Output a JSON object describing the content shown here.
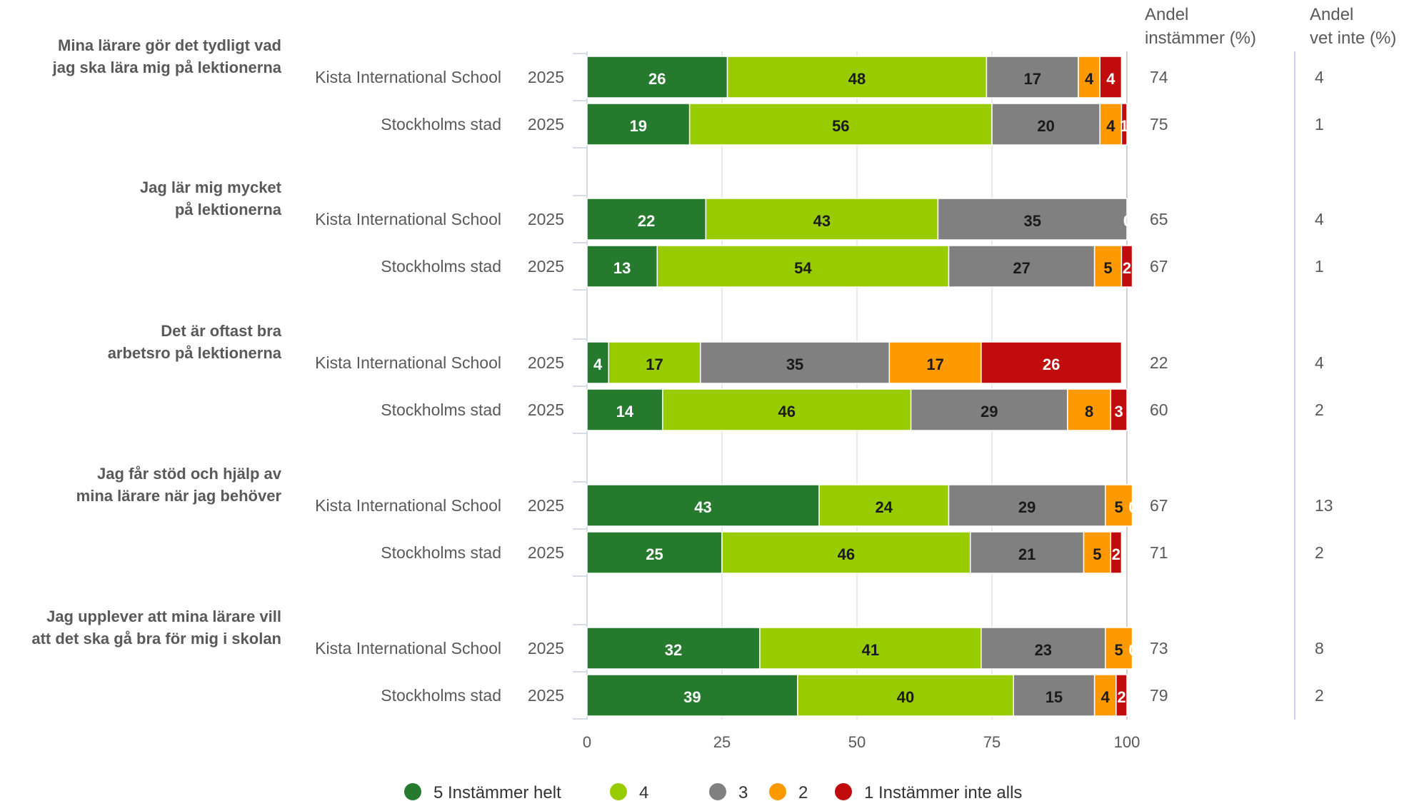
{
  "colors": {
    "5": "#267a2e",
    "4": "#99cc00",
    "3": "#808080",
    "2": "#ff9900",
    "1": "#c00c0c"
  },
  "chart_data": {
    "type": "bar",
    "orientation": "horizontal",
    "stacked": true,
    "xlim": [
      0,
      100
    ],
    "x_ticks": [
      "0",
      "25",
      "50",
      "75",
      "100"
    ],
    "grid": true,
    "legend_position": "bottom",
    "header_andel_instammer": [
      "Andel",
      "instämmer (%)"
    ],
    "header_andel_vet_inte": [
      "Andel",
      "vet inte (%)"
    ],
    "legend": [
      {
        "key": "5",
        "label": "5 Instämmer helt"
      },
      {
        "key": "4",
        "label": "4"
      },
      {
        "key": "3",
        "label": "3"
      },
      {
        "key": "2",
        "label": "2"
      },
      {
        "key": "1",
        "label": "1 Instämmer inte alls"
      }
    ],
    "questions": [
      {
        "label": [
          "Mina lärare gör det tydligt vad",
          "jag ska lära mig på lektionerna"
        ],
        "rows": [
          {
            "group": "Kista International School",
            "year": "2025",
            "values": [
              26,
              48,
              17,
              4,
              4
            ],
            "andel_instammer": "74",
            "andel_vet_inte": "4"
          },
          {
            "group": "Stockholms stad",
            "year": "2025",
            "values": [
              19,
              56,
              20,
              4,
              1
            ],
            "andel_instammer": "75",
            "andel_vet_inte": "1"
          }
        ]
      },
      {
        "label": [
          "Jag lär mig mycket",
          "på lektionerna"
        ],
        "rows": [
          {
            "group": "Kista International School",
            "year": "2025",
            "values": [
              22,
              43,
              35,
              0,
              0
            ],
            "andel_instammer": "65",
            "andel_vet_inte": "4"
          },
          {
            "group": "Stockholms stad",
            "year": "2025",
            "values": [
              13,
              54,
              27,
              5,
              2
            ],
            "andel_instammer": "67",
            "andel_vet_inte": "1"
          }
        ]
      },
      {
        "label": [
          "Det är oftast bra",
          "arbetsro på lektionerna"
        ],
        "rows": [
          {
            "group": "Kista International School",
            "year": "2025",
            "values": [
              4,
              17,
              35,
              17,
              26
            ],
            "andel_instammer": "22",
            "andel_vet_inte": "4"
          },
          {
            "group": "Stockholms stad",
            "year": "2025",
            "values": [
              14,
              46,
              29,
              8,
              3
            ],
            "andel_instammer": "60",
            "andel_vet_inte": "2"
          }
        ]
      },
      {
        "label": [
          "Jag får stöd och hjälp av",
          "mina lärare när jag behöver"
        ],
        "rows": [
          {
            "group": "Kista International School",
            "year": "2025",
            "values": [
              43,
              24,
              29,
              5,
              0
            ],
            "andel_instammer": "67",
            "andel_vet_inte": "13"
          },
          {
            "group": "Stockholms stad",
            "year": "2025",
            "values": [
              25,
              46,
              21,
              5,
              2
            ],
            "andel_instammer": "71",
            "andel_vet_inte": "2"
          }
        ]
      },
      {
        "label": [
          "Jag upplever att mina lärare vill",
          "att det ska gå bra för mig i skolan"
        ],
        "rows": [
          {
            "group": "Kista International School",
            "year": "2025",
            "values": [
              32,
              41,
              23,
              5,
              0
            ],
            "andel_instammer": "73",
            "andel_vet_inte": "8"
          },
          {
            "group": "Stockholms stad",
            "year": "2025",
            "values": [
              39,
              40,
              15,
              4,
              2
            ],
            "andel_instammer": "79",
            "andel_vet_inte": "2"
          }
        ]
      }
    ]
  }
}
